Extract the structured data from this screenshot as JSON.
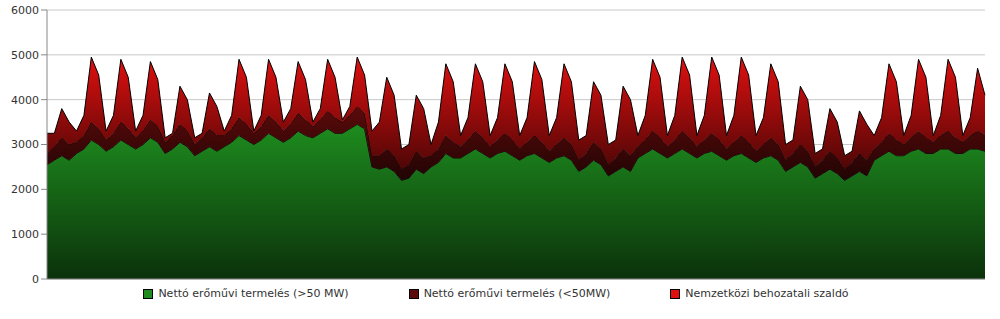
{
  "chart_data": {
    "type": "area",
    "stacked": true,
    "grid": true,
    "legend": "bottom",
    "tick_labels": "y",
    "ylim": [
      0,
      6000
    ],
    "yticks": [
      0,
      1000,
      2000,
      3000,
      4000,
      5000,
      6000
    ],
    "categories": [
      null,
      null,
      null,
      null,
      null,
      null,
      null,
      null,
      null,
      null,
      null,
      null,
      null,
      null,
      null,
      null,
      null,
      null,
      null,
      null,
      null,
      null,
      null,
      null,
      null,
      null,
      null,
      null,
      null,
      null,
      null,
      null,
      null,
      null,
      null,
      null,
      null,
      null,
      null,
      null,
      null,
      null,
      null,
      null,
      null,
      null,
      null,
      null,
      null,
      null,
      null,
      null,
      null,
      null,
      null,
      null,
      null,
      null,
      null,
      null,
      null,
      null,
      null,
      null,
      null,
      null,
      null,
      null,
      null,
      null,
      null,
      null,
      null,
      null,
      null,
      null,
      null,
      null,
      null,
      null,
      null,
      null,
      null,
      null,
      null,
      null,
      null,
      null,
      null,
      null,
      null,
      null,
      null,
      null,
      null,
      null,
      null,
      null,
      null,
      null,
      null,
      null,
      null,
      null,
      null,
      null,
      null,
      null,
      null,
      null,
      null,
      null,
      null,
      null,
      null,
      null,
      null,
      null,
      null,
      null,
      null,
      null,
      null,
      null,
      null,
      null,
      null,
      null
    ],
    "series": [
      {
        "name": "Nettó erőművi termelés (>50 MW)",
        "color": "#1e8c1e",
        "values": [
          2550,
          2650,
          2750,
          2650,
          2800,
          2900,
          3100,
          3000,
          2850,
          2950,
          3100,
          3000,
          2900,
          3000,
          3150,
          3050,
          2800,
          2900,
          3050,
          2950,
          2750,
          2850,
          2950,
          2850,
          2950,
          3050,
          3200,
          3100,
          3000,
          3100,
          3250,
          3150,
          3050,
          3150,
          3300,
          3200,
          3150,
          3250,
          3350,
          3250,
          3250,
          3350,
          3450,
          3350,
          2500,
          2450,
          2500,
          2400,
          2200,
          2250,
          2450,
          2350,
          2500,
          2600,
          2800,
          2700,
          2700,
          2800,
          2900,
          2800,
          2700,
          2800,
          2850,
          2750,
          2650,
          2750,
          2800,
          2700,
          2600,
          2700,
          2750,
          2650,
          2400,
          2500,
          2650,
          2550,
          2300,
          2400,
          2500,
          2400,
          2700,
          2800,
          2900,
          2800,
          2700,
          2800,
          2900,
          2800,
          2700,
          2800,
          2850,
          2750,
          2650,
          2750,
          2800,
          2700,
          2600,
          2700,
          2750,
          2650,
          2400,
          2500,
          2600,
          2500,
          2250,
          2350,
          2450,
          2350,
          2200,
          2300,
          2400,
          2300,
          2650,
          2750,
          2850,
          2750,
          2750,
          2850,
          2900,
          2800,
          2800,
          2900,
          2900,
          2800,
          2800,
          2900,
          2900,
          2850
        ]
      },
      {
        "name": "Nettó erőművi termelés (<50MW)",
        "color": "#5c0a0a",
        "values": [
          250,
          300,
          400,
          350,
          250,
          300,
          400,
          350,
          250,
          300,
          400,
          350,
          250,
          300,
          400,
          350,
          250,
          300,
          400,
          350,
          250,
          300,
          400,
          350,
          250,
          300,
          400,
          350,
          250,
          300,
          400,
          350,
          250,
          300,
          400,
          350,
          250,
          300,
          400,
          350,
          250,
          300,
          400,
          350,
          250,
          300,
          400,
          350,
          250,
          300,
          400,
          350,
          250,
          300,
          400,
          350,
          250,
          300,
          400,
          350,
          250,
          300,
          400,
          350,
          250,
          300,
          400,
          350,
          250,
          300,
          400,
          350,
          250,
          300,
          400,
          350,
          250,
          300,
          400,
          350,
          250,
          300,
          400,
          350,
          250,
          300,
          400,
          350,
          250,
          300,
          400,
          350,
          250,
          300,
          400,
          350,
          250,
          300,
          400,
          350,
          250,
          300,
          400,
          350,
          250,
          300,
          400,
          350,
          250,
          300,
          400,
          350,
          250,
          300,
          400,
          350,
          250,
          300,
          400,
          350,
          250,
          300,
          400,
          350,
          250,
          300,
          400,
          350
        ]
      },
      {
        "name": "Nemzetközi behozatali szaldó",
        "color": "#e01010",
        "values": [
          450,
          300,
          650,
          500,
          250,
          450,
          1450,
          1200,
          200,
          400,
          1400,
          1150,
          150,
          350,
          1300,
          1050,
          100,
          50,
          850,
          700,
          150,
          100,
          800,
          650,
          100,
          300,
          1300,
          1050,
          50,
          250,
          1250,
          1000,
          200,
          350,
          1150,
          900,
          100,
          250,
          1150,
          900,
          50,
          200,
          1100,
          850,
          550,
          750,
          1600,
          1350,
          450,
          450,
          1250,
          1100,
          250,
          600,
          1600,
          1350,
          250,
          500,
          1500,
          1250,
          250,
          500,
          1550,
          1300,
          300,
          550,
          1650,
          1400,
          350,
          600,
          1650,
          1400,
          450,
          400,
          1350,
          1200,
          450,
          400,
          1400,
          1250,
          250,
          550,
          1600,
          1350,
          250,
          550,
          1650,
          1400,
          250,
          550,
          1700,
          1450,
          300,
          600,
          1750,
          1500,
          350,
          600,
          1650,
          1400,
          350,
          300,
          1300,
          1150,
          300,
          250,
          950,
          800,
          300,
          250,
          950,
          800,
          300,
          550,
          1550,
          1300,
          200,
          500,
          1600,
          1350,
          150,
          450,
          1600,
          1350,
          150,
          400,
          1400,
          900
        ]
      }
    ]
  }
}
